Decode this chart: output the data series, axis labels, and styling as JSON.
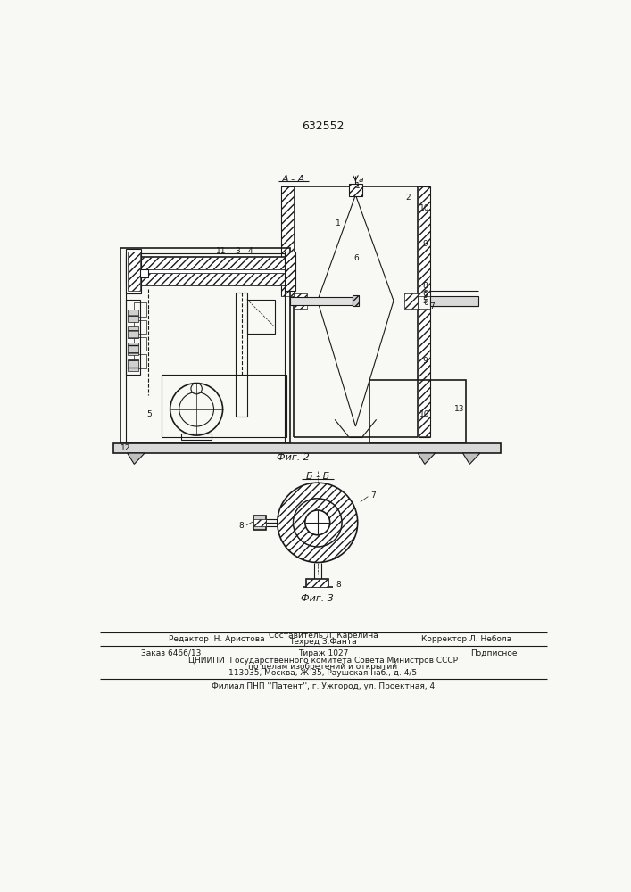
{
  "patent_number": "632552",
  "fig2_label": "А - А",
  "fig2_caption": "Фиг. 2",
  "fig3_label": "Б - Б",
  "fig3_caption": "Фиг. 3",
  "background_color": "#f8f8f5",
  "line_color": "#1a1a1a",
  "footer_line1_left": "Редактор  Н. Аристова",
  "footer_comp": "Составитель Л. Карелина",
  "footer_tech": "Техред З.Фанта",
  "footer_corr": "Корректор Л. Небола",
  "footer_order": "Заказ 6466/13",
  "footer_circ": "Тираж 1027",
  "footer_sub": "Подписное",
  "footer_org": "ЦНИИПИ  Государственного комитета Совета Министров СССР",
  "footer_dept": "по делам изобретений и открытий",
  "footer_addr": "113035, Москва, Ж-35, Раушская наб., д. 4/5",
  "footer_branch": "Филиал ПНП ''Патент'', г. Ужгород, ул. Проектная, 4"
}
